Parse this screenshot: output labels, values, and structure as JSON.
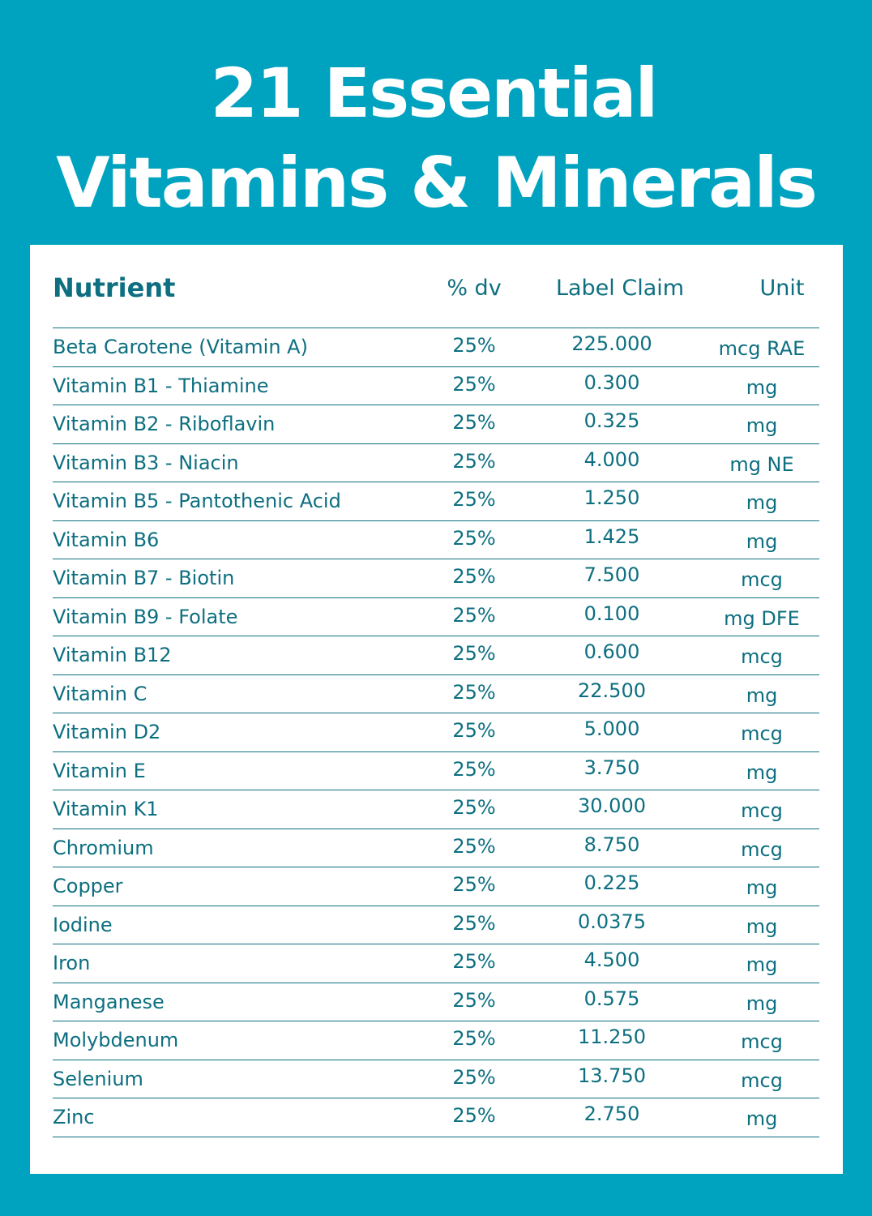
{
  "title": {
    "line1": "21 Essential",
    "line2": "Vitamins & Minerals"
  },
  "table": {
    "headers": {
      "nutrient": "Nutrient",
      "dv": "% dv",
      "claim": "Label Claim",
      "unit": "Unit"
    },
    "rows": [
      {
        "name": "Beta Carotene (Vitamin A)",
        "dv": "25%",
        "claim": "225.000",
        "unit": "mcg RAE"
      },
      {
        "name": "Vitamin B1 - Thiamine",
        "dv": "25%",
        "claim": "0.300",
        "unit": "mg"
      },
      {
        "name": "Vitamin B2 - Riboflavin",
        "dv": "25%",
        "claim": "0.325",
        "unit": "mg"
      },
      {
        "name": "Vitamin B3 - Niacin",
        "dv": "25%",
        "claim": "4.000",
        "unit": "mg NE"
      },
      {
        "name": "Vitamin B5 - Pantothenic Acid",
        "dv": "25%",
        "claim": "1.250",
        "unit": "mg"
      },
      {
        "name": "Vitamin B6",
        "dv": "25%",
        "claim": "1.425",
        "unit": "mg"
      },
      {
        "name": "Vitamin B7 - Biotin",
        "dv": "25%",
        "claim": "7.500",
        "unit": "mcg"
      },
      {
        "name": "Vitamin B9 - Folate",
        "dv": "25%",
        "claim": "0.100",
        "unit": "mg DFE"
      },
      {
        "name": "Vitamin B12",
        "dv": "25%",
        "claim": "0.600",
        "unit": "mcg"
      },
      {
        "name": "Vitamin C",
        "dv": "25%",
        "claim": "22.500",
        "unit": "mg"
      },
      {
        "name": "Vitamin D2",
        "dv": "25%",
        "claim": "5.000",
        "unit": "mcg"
      },
      {
        "name": "Vitamin E",
        "dv": "25%",
        "claim": "3.750",
        "unit": "mg"
      },
      {
        "name": "Vitamin K1",
        "dv": "25%",
        "claim": "30.000",
        "unit": "mcg"
      },
      {
        "name": "Chromium",
        "dv": "25%",
        "claim": "8.750",
        "unit": "mcg"
      },
      {
        "name": "Copper",
        "dv": "25%",
        "claim": "0.225",
        "unit": "mg"
      },
      {
        "name": "Iodine",
        "dv": "25%",
        "claim": "0.0375",
        "unit": "mg"
      },
      {
        "name": "Iron",
        "dv": "25%",
        "claim": "4.500",
        "unit": "mg"
      },
      {
        "name": "Manganese",
        "dv": "25%",
        "claim": "0.575",
        "unit": "mg"
      },
      {
        "name": "Molybdenum",
        "dv": "25%",
        "claim": "11.250",
        "unit": "mcg"
      },
      {
        "name": "Selenium",
        "dv": "25%",
        "claim": "13.750",
        "unit": "mcg"
      },
      {
        "name": "Zinc",
        "dv": "25%",
        "claim": "2.750",
        "unit": "mg"
      }
    ]
  },
  "colors": {
    "background": "#00a3bf",
    "text": "#0d6f80",
    "card": "#ffffff"
  }
}
